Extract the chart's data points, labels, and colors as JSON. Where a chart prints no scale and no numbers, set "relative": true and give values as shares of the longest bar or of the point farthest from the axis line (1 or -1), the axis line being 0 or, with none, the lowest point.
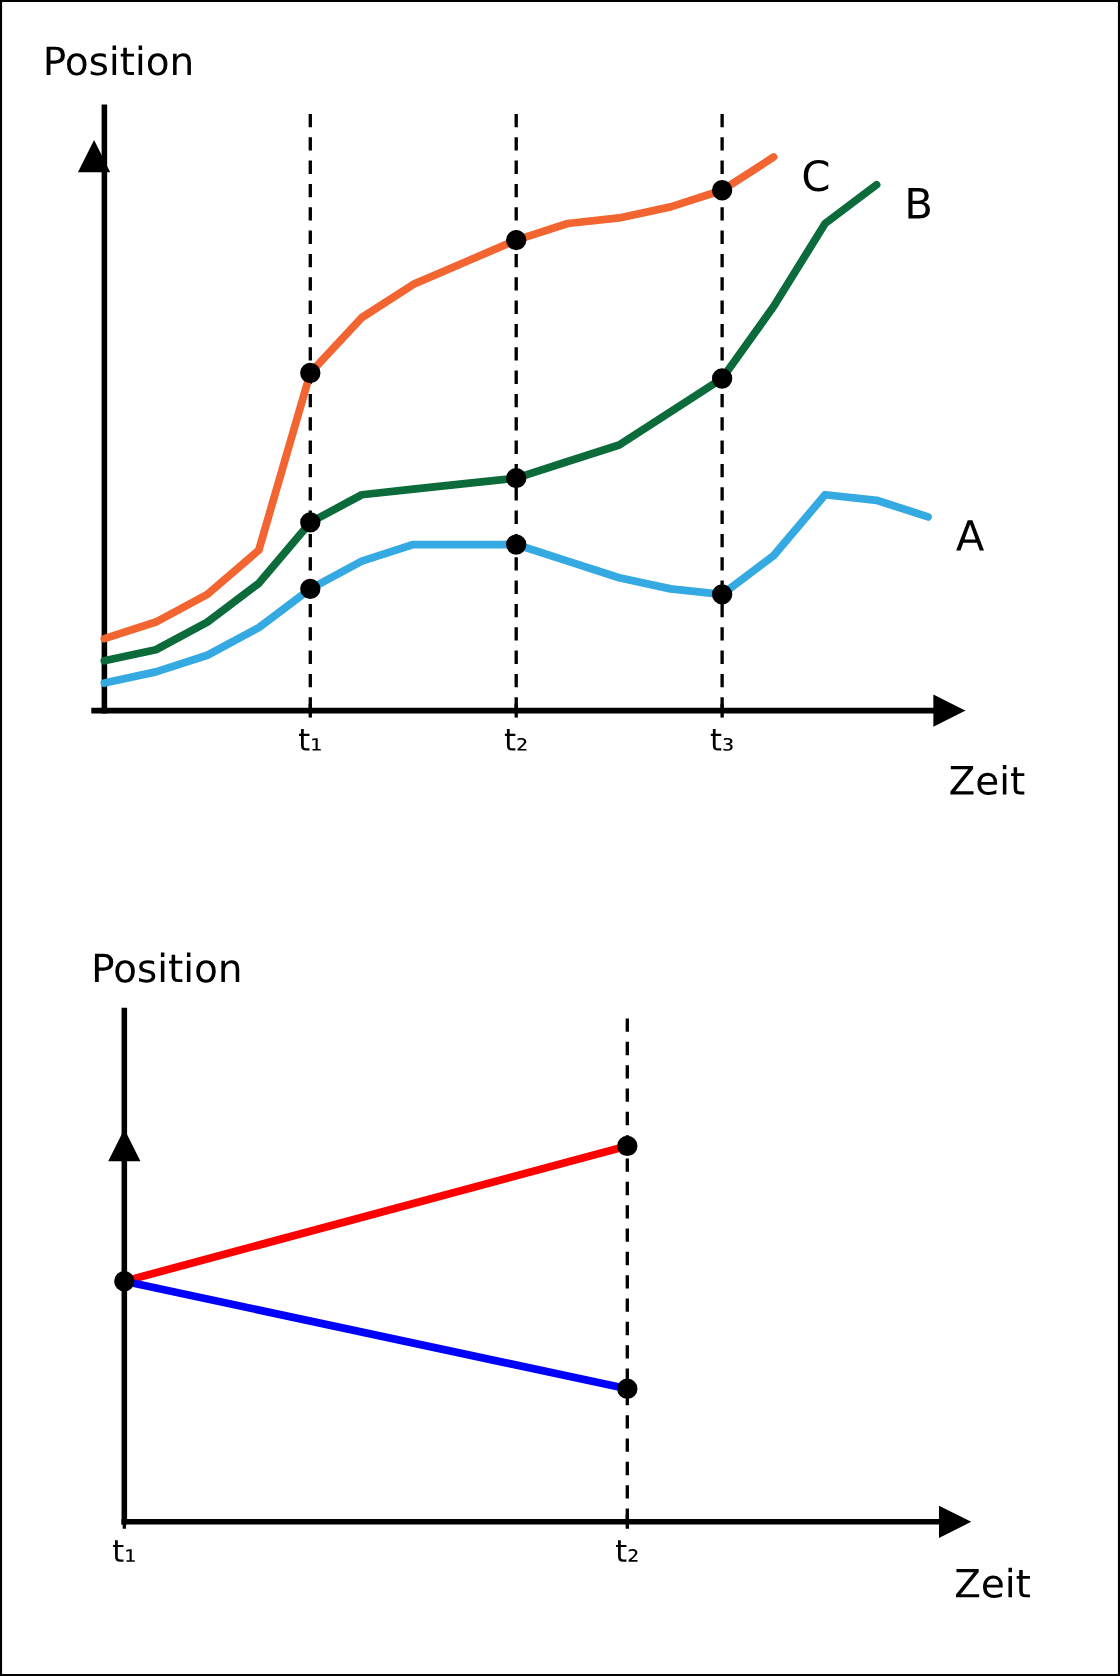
{
  "chart_data": [
    {
      "type": "line",
      "relative": true,
      "xlabel": "Zeit",
      "ylabel": "Position",
      "categories": [
        null,
        null,
        null,
        null,
        "t₁",
        null,
        null,
        null,
        "t₂",
        null,
        null,
        null,
        "t₃",
        null,
        null,
        null,
        null
      ],
      "series": [
        {
          "name": "C",
          "color": "#f26531",
          "values": [
            0.13,
            0.16,
            0.21,
            0.29,
            0.61,
            0.71,
            0.77,
            0.81,
            0.85,
            0.88,
            0.89,
            0.91,
            0.94,
            1.0,
            null,
            null,
            null
          ]
        },
        {
          "name": "B",
          "color": "#0b6b3a",
          "values": [
            0.09,
            0.11,
            0.16,
            0.23,
            0.34,
            0.39,
            0.4,
            0.41,
            0.42,
            0.45,
            0.48,
            0.54,
            0.6,
            0.73,
            0.88,
            0.95,
            null
          ]
        },
        {
          "name": "A",
          "color": "#35a9e1",
          "values": [
            0.05,
            0.07,
            0.1,
            0.15,
            0.22,
            0.27,
            0.3,
            0.3,
            0.3,
            0.27,
            0.24,
            0.22,
            0.21,
            0.28,
            0.39,
            0.38,
            0.35
          ]
        },
        {
          "type": "scatter",
          "color": "#000000",
          "values": [
            null,
            null,
            null,
            null,
            0.61,
            null,
            null,
            null,
            0.85,
            null,
            null,
            null,
            0.94,
            null,
            null,
            null,
            null
          ]
        },
        {
          "type": "scatter",
          "color": "#000000",
          "values": [
            null,
            null,
            null,
            null,
            0.34,
            null,
            null,
            null,
            0.42,
            null,
            null,
            null,
            0.6,
            null,
            null,
            null,
            null
          ]
        },
        {
          "type": "scatter",
          "color": "#000000",
          "values": [
            null,
            null,
            null,
            null,
            0.22,
            null,
            null,
            null,
            0.3,
            null,
            null,
            null,
            0.21,
            null,
            null,
            null,
            null
          ]
        }
      ],
      "grid": "x"
    },
    {
      "type": "line",
      "relative": true,
      "xlabel": "Zeit",
      "ylabel": "Position",
      "categories": [
        "t₁",
        "t₂"
      ],
      "series": [
        {
          "color": "#ff0000",
          "values": [
            0.64,
            1.0
          ]
        },
        {
          "color": "#0000ff",
          "values": [
            0.64,
            0.354
          ]
        },
        {
          "type": "scatter",
          "color": "#000000",
          "values": [
            0.64,
            1.0
          ]
        },
        {
          "type": "scatter",
          "color": "#000000",
          "values": [
            null,
            0.354
          ]
        }
      ],
      "grid": "x"
    }
  ]
}
